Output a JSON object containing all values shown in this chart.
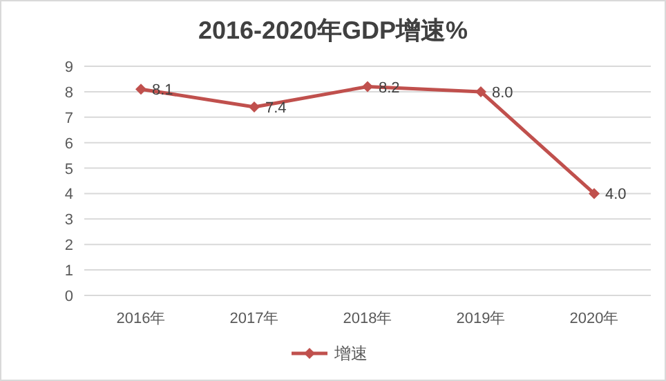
{
  "chart_data": {
    "type": "line",
    "title": "2016-2020年GDP增速%",
    "categories": [
      "2016年",
      "2017年",
      "2018年",
      "2019年",
      "2020年"
    ],
    "series": [
      {
        "name": "增速",
        "color": "#c0504d",
        "values": [
          8.1,
          7.4,
          8.2,
          8.0,
          4.0
        ],
        "value_labels": [
          "8.1",
          "7.4",
          "8.2",
          "8.0",
          "4.0"
        ]
      }
    ],
    "ylim": [
      0,
      9
    ],
    "yticks": [
      0,
      1,
      2,
      3,
      4,
      5,
      6,
      7,
      8,
      9
    ],
    "grid": "y",
    "legend": "bottom",
    "marker": "diamond",
    "line_style": "solid"
  }
}
